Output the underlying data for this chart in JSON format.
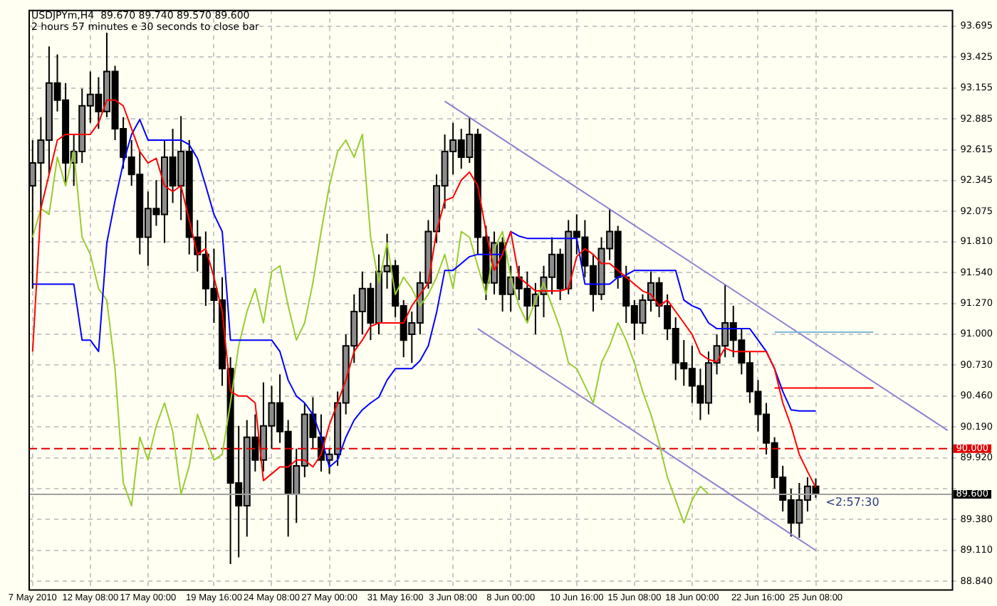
{
  "chart_data": {
    "type": "candlestick",
    "title": "USDJPYm,H4  89.670 89.740 89.570 89.600",
    "annotations": [
      "2 hours 57 minutes e 30 seconds to close bar",
      "<2:57:30"
    ],
    "categories": [
      "7 May 2010",
      null,
      null,
      null,
      null,
      null,
      null,
      "12 May 08:00",
      null,
      null,
      null,
      null,
      null,
      null,
      "17 May 00:00",
      null,
      null,
      null,
      null,
      null,
      null,
      null,
      "19 May 16:00",
      null,
      null,
      null,
      null,
      null,
      null,
      "24 May 08:00",
      null,
      null,
      null,
      null,
      null,
      null,
      "27 May 00:00",
      null,
      null,
      null,
      null,
      null,
      null,
      null,
      "31 May 16:00",
      null,
      null,
      null,
      null,
      null,
      null,
      "3 Jun 08:00",
      null,
      null,
      null,
      null,
      null,
      null,
      "8 Jun 00:00",
      null,
      null,
      null,
      null,
      null,
      null,
      null,
      "10 Jun 16:00",
      null,
      null,
      null,
      null,
      null,
      null,
      "15 Jun 08:00",
      null,
      null,
      null,
      null,
      null,
      null,
      "18 Jun 00:00",
      null,
      null,
      null,
      null,
      null,
      null,
      null,
      "22 Jun 16:00",
      null,
      null,
      null,
      null,
      null,
      null,
      "25 Jun 08:00",
      null,
      null,
      null,
      null,
      null,
      null,
      null,
      null,
      null,
      null,
      null,
      null,
      null,
      null,
      null,
      null
    ],
    "ohlc": [
      [
        92.3,
        92.7,
        91.4,
        92.5
      ],
      [
        92.5,
        92.9,
        92.1,
        92.7
      ],
      [
        92.7,
        93.52,
        92.4,
        93.2
      ],
      [
        93.2,
        93.45,
        92.95,
        93.05
      ],
      [
        93.05,
        93.2,
        92.3,
        92.5
      ],
      [
        92.5,
        92.75,
        92.3,
        92.6
      ],
      [
        92.6,
        93.15,
        92.5,
        93.0
      ],
      [
        93.0,
        93.3,
        92.85,
        93.1
      ],
      [
        93.1,
        93.25,
        92.8,
        92.95
      ],
      [
        92.95,
        93.64,
        92.9,
        93.3
      ],
      [
        93.3,
        93.35,
        92.7,
        92.8
      ],
      [
        92.8,
        92.9,
        92.45,
        92.55
      ],
      [
        92.55,
        92.7,
        92.3,
        92.4
      ],
      [
        92.4,
        92.6,
        91.7,
        91.85
      ],
      [
        91.85,
        92.25,
        91.6,
        92.1
      ],
      [
        92.1,
        92.35,
        91.95,
        92.05
      ],
      [
        92.05,
        92.7,
        91.8,
        92.55
      ],
      [
        92.55,
        92.8,
        92.15,
        92.3
      ],
      [
        92.3,
        92.91,
        92.0,
        92.6
      ],
      [
        92.6,
        92.7,
        91.7,
        91.85
      ],
      [
        91.85,
        92.0,
        91.55,
        91.7
      ],
      [
        91.7,
        91.9,
        91.25,
        91.4
      ],
      [
        91.4,
        91.75,
        91.1,
        91.3
      ],
      [
        91.3,
        91.5,
        90.55,
        90.7
      ],
      [
        90.7,
        90.8,
        88.99,
        89.7
      ],
      [
        89.7,
        90.2,
        89.05,
        89.5
      ],
      [
        89.5,
        90.25,
        89.23,
        90.1
      ],
      [
        90.1,
        90.3,
        89.8,
        89.9
      ],
      [
        89.9,
        90.58,
        89.8,
        90.2
      ],
      [
        90.2,
        90.55,
        90.0,
        90.4
      ],
      [
        90.4,
        90.65,
        90.05,
        90.15
      ],
      [
        90.15,
        90.25,
        89.23,
        89.6
      ],
      [
        89.6,
        90.0,
        89.35,
        89.85
      ],
      [
        89.85,
        90.4,
        89.75,
        90.3
      ],
      [
        90.3,
        90.45,
        90.0,
        90.1
      ],
      [
        90.1,
        90.3,
        89.8,
        89.9
      ],
      [
        89.9,
        90.0,
        89.78,
        89.95
      ],
      [
        89.95,
        90.5,
        89.85,
        90.4
      ],
      [
        90.4,
        91.0,
        90.3,
        90.9
      ],
      [
        90.9,
        91.35,
        90.75,
        91.2
      ],
      [
        91.2,
        91.55,
        91.0,
        91.4
      ],
      [
        91.4,
        91.45,
        90.95,
        91.1
      ],
      [
        91.1,
        91.7,
        91.0,
        91.55
      ],
      [
        91.55,
        91.88,
        91.4,
        91.6
      ],
      [
        91.6,
        91.65,
        91.15,
        91.25
      ],
      [
        91.25,
        91.3,
        90.8,
        90.95
      ],
      [
        91.0,
        91.2,
        90.75,
        91.1
      ],
      [
        91.1,
        91.55,
        91.0,
        91.45
      ],
      [
        91.45,
        92.0,
        91.4,
        91.9
      ],
      [
        91.9,
        92.4,
        91.8,
        92.3
      ],
      [
        92.3,
        92.75,
        92.1,
        92.6
      ],
      [
        92.6,
        92.85,
        92.4,
        92.7
      ],
      [
        92.7,
        92.8,
        92.45,
        92.55
      ],
      [
        92.55,
        92.9,
        92.5,
        92.75
      ],
      [
        92.75,
        92.8,
        91.7,
        91.85
      ],
      [
        91.85,
        91.95,
        91.3,
        91.45
      ],
      [
        91.45,
        91.9,
        91.35,
        91.8
      ],
      [
        91.8,
        91.85,
        91.2,
        91.35
      ],
      [
        91.35,
        91.6,
        91.2,
        91.5
      ],
      [
        91.5,
        91.6,
        91.3,
        91.4
      ],
      [
        91.4,
        91.55,
        91.1,
        91.25
      ],
      [
        91.25,
        91.45,
        91.0,
        91.35
      ],
      [
        91.35,
        91.6,
        91.15,
        91.5
      ],
      [
        91.5,
        91.85,
        91.35,
        91.7
      ],
      [
        91.7,
        91.75,
        91.3,
        91.4
      ],
      [
        91.4,
        92.0,
        91.35,
        91.9
      ],
      [
        91.9,
        92.05,
        91.7,
        91.85
      ],
      [
        91.85,
        92.0,
        91.5,
        91.6
      ],
      [
        91.6,
        91.7,
        91.2,
        91.35
      ],
      [
        91.35,
        91.85,
        91.3,
        91.75
      ],
      [
        91.75,
        92.1,
        91.65,
        91.9
      ],
      [
        91.9,
        91.95,
        91.4,
        91.5
      ],
      [
        91.5,
        91.6,
        91.1,
        91.25
      ],
      [
        91.25,
        91.3,
        90.95,
        91.1
      ],
      [
        91.1,
        91.35,
        91.0,
        91.3
      ],
      [
        91.3,
        91.55,
        91.2,
        91.45
      ],
      [
        91.45,
        91.5,
        91.15,
        91.25
      ],
      [
        91.25,
        91.35,
        90.95,
        91.05
      ],
      [
        91.05,
        91.15,
        90.6,
        90.75
      ],
      [
        90.75,
        90.95,
        90.55,
        90.7
      ],
      [
        90.7,
        90.9,
        90.4,
        90.55
      ],
      [
        90.55,
        90.7,
        90.25,
        90.4
      ],
      [
        90.4,
        90.85,
        90.3,
        90.75
      ],
      [
        90.75,
        91.0,
        90.65,
        90.9
      ],
      [
        90.9,
        91.44,
        90.8,
        91.1
      ],
      [
        91.1,
        91.25,
        90.8,
        90.95
      ],
      [
        90.95,
        91.05,
        90.65,
        90.75
      ],
      [
        90.75,
        90.85,
        90.4,
        90.5
      ],
      [
        90.5,
        90.6,
        90.15,
        90.3
      ],
      [
        90.3,
        90.4,
        89.95,
        90.05
      ],
      [
        90.05,
        90.1,
        89.65,
        89.75
      ],
      [
        89.75,
        89.85,
        89.45,
        89.55
      ],
      [
        89.55,
        89.65,
        89.23,
        89.35
      ],
      [
        89.35,
        89.7,
        89.22,
        89.55
      ],
      [
        89.55,
        89.75,
        89.45,
        89.67
      ],
      [
        89.67,
        89.74,
        89.57,
        89.6
      ],
      null,
      null,
      null,
      null,
      null,
      null,
      null,
      null,
      null,
      null,
      null,
      null,
      null,
      null,
      null,
      null
    ],
    "series": [
      {
        "type": "line",
        "color": "#ff0000",
        "values": [
          90.85,
          92.1,
          92.4,
          92.7,
          92.75,
          92.75,
          92.75,
          92.75,
          92.85,
          93.05,
          93.05,
          93.0,
          92.8,
          92.6,
          92.5,
          92.54,
          92.3,
          92.25,
          92.3,
          92.0,
          91.7,
          91.75,
          91.5,
          91.2,
          90.5,
          90.46,
          90.46,
          90.4,
          89.72,
          89.78,
          89.84,
          89.84,
          89.9,
          89.9,
          89.84,
          89.95,
          90.21,
          90.4,
          90.6,
          90.85,
          90.95,
          91.07,
          91.1,
          91.1,
          91.1,
          91.1,
          91.25,
          91.35,
          91.45,
          91.9,
          92.17,
          92.2,
          92.35,
          92.42,
          92.3,
          91.9,
          91.56,
          91.7,
          91.9,
          91.5,
          91.44,
          91.38,
          91.38,
          91.38,
          91.38,
          91.4,
          91.68,
          91.75,
          91.7,
          91.62,
          91.62,
          91.56,
          91.5,
          91.44,
          91.38,
          91.35,
          91.25,
          91.3,
          91.2,
          91.1,
          91.0,
          90.83,
          90.78,
          90.76,
          90.88,
          90.85,
          90.85,
          90.85,
          90.85,
          90.85,
          90.7,
          90.4,
          90.2,
          89.95,
          89.8,
          89.66,
          null,
          null,
          null,
          null,
          null,
          null,
          null,
          null,
          null,
          null,
          null,
          null,
          null,
          null,
          null,
          null
        ]
      },
      {
        "type": "line",
        "color": "#0000ff",
        "values": [
          91.44,
          91.44,
          91.44,
          91.44,
          91.44,
          91.44,
          90.95,
          90.95,
          90.85,
          91.8,
          92.17,
          92.5,
          92.75,
          92.88,
          92.7,
          92.7,
          92.7,
          92.7,
          92.7,
          92.66,
          92.54,
          92.3,
          92.05,
          91.9,
          90.95,
          90.95,
          90.95,
          90.95,
          90.95,
          90.95,
          90.85,
          90.6,
          90.46,
          90.4,
          90.3,
          90.1,
          89.84,
          89.9,
          90.1,
          90.25,
          90.34,
          90.4,
          90.45,
          90.6,
          90.7,
          90.7,
          90.7,
          90.77,
          90.9,
          91.19,
          91.56,
          91.56,
          91.62,
          91.68,
          91.7,
          91.7,
          91.7,
          91.7,
          91.9,
          91.86,
          91.84,
          91.84,
          91.84,
          91.84,
          91.84,
          91.84,
          91.84,
          91.44,
          91.44,
          91.44,
          91.44,
          91.5,
          91.52,
          91.56,
          91.56,
          91.56,
          91.56,
          91.56,
          91.56,
          91.3,
          91.25,
          91.22,
          91.1,
          91.05,
          91.05,
          91.05,
          91.05,
          91.05,
          90.95,
          90.85,
          90.7,
          90.5,
          90.34,
          90.33,
          90.33,
          90.33,
          null,
          null,
          null,
          null,
          null,
          null,
          null,
          null,
          null,
          null,
          null,
          null,
          null,
          null,
          null,
          null
        ]
      },
      {
        "type": "line",
        "color": "#99cc33",
        "values": [
          91.85,
          92.1,
          92.05,
          92.55,
          92.3,
          92.6,
          91.85,
          91.7,
          91.4,
          91.3,
          90.7,
          89.7,
          89.5,
          90.1,
          89.9,
          90.2,
          90.4,
          90.15,
          89.6,
          89.85,
          90.3,
          90.1,
          89.9,
          89.95,
          90.4,
          90.9,
          91.2,
          91.4,
          91.1,
          91.55,
          91.6,
          91.25,
          90.95,
          91.1,
          91.45,
          91.9,
          92.3,
          92.6,
          92.7,
          92.55,
          92.75,
          91.85,
          91.45,
          91.8,
          91.35,
          91.5,
          91.4,
          91.25,
          91.35,
          91.5,
          91.7,
          91.4,
          91.9,
          91.85,
          91.6,
          91.35,
          91.75,
          91.9,
          91.5,
          91.25,
          91.1,
          91.3,
          91.45,
          91.25,
          91.05,
          90.75,
          90.7,
          90.55,
          90.4,
          90.75,
          90.9,
          91.1,
          90.95,
          90.75,
          90.5,
          90.3,
          90.05,
          89.75,
          89.55,
          89.35,
          89.55,
          89.67,
          89.6,
          null,
          null,
          null,
          null,
          null,
          null,
          null,
          null,
          null,
          null,
          null,
          null,
          null,
          null,
          null,
          null,
          null,
          null,
          null,
          null,
          null,
          null,
          null,
          null,
          null,
          null,
          null,
          null,
          null
        ]
      },
      {
        "type": "line",
        "color": "#ff0000",
        "values": [
          null,
          null,
          null,
          null,
          null,
          null,
          null,
          null,
          null,
          null,
          null,
          null,
          null,
          null,
          null,
          null,
          null,
          null,
          null,
          null,
          null,
          null,
          null,
          null,
          null,
          null,
          null,
          null,
          null,
          null,
          null,
          null,
          null,
          null,
          null,
          null,
          null,
          null,
          null,
          null,
          null,
          null,
          null,
          null,
          null,
          null,
          null,
          null,
          null,
          null,
          null,
          null,
          null,
          null,
          null,
          null,
          null,
          null,
          null,
          null,
          null,
          null,
          null,
          null,
          null,
          null,
          null,
          null,
          null,
          null,
          null,
          null,
          null,
          null,
          null,
          null,
          null,
          null,
          null,
          null,
          null,
          null,
          null,
          null,
          null,
          null,
          null,
          null,
          null,
          null,
          90.53,
          90.53,
          90.53,
          90.53,
          90.53,
          90.53,
          90.53,
          90.53,
          90.53,
          90.53,
          90.53,
          90.53,
          90.53,
          null,
          null,
          null,
          null,
          null,
          null,
          null,
          null,
          null
        ]
      },
      {
        "type": "line",
        "color": "#80b8d8",
        "values": [
          null,
          null,
          null,
          null,
          null,
          null,
          null,
          null,
          null,
          null,
          null,
          null,
          null,
          null,
          null,
          null,
          null,
          null,
          null,
          null,
          null,
          null,
          null,
          null,
          null,
          null,
          null,
          null,
          null,
          null,
          null,
          null,
          null,
          null,
          null,
          null,
          null,
          null,
          null,
          null,
          null,
          null,
          null,
          null,
          null,
          null,
          null,
          null,
          null,
          null,
          null,
          null,
          null,
          null,
          null,
          null,
          null,
          null,
          null,
          null,
          null,
          null,
          null,
          null,
          null,
          null,
          null,
          null,
          null,
          null,
          null,
          null,
          null,
          null,
          null,
          null,
          null,
          null,
          null,
          null,
          null,
          null,
          null,
          null,
          null,
          null,
          null,
          null,
          null,
          null,
          91.02,
          91.02,
          91.02,
          91.02,
          91.02,
          91.02,
          91.02,
          91.02,
          91.02,
          91.02,
          91.02,
          91.02,
          91.02,
          null,
          null,
          null,
          null,
          null,
          null,
          null,
          null,
          null
        ]
      },
      {
        "type": "line",
        "color": "#9080d0",
        "values": [
          null,
          null,
          null,
          null,
          null,
          null,
          null,
          null,
          null,
          null,
          null,
          null,
          null,
          null,
          null,
          null,
          null,
          null,
          null,
          null,
          null,
          null,
          null,
          null,
          null,
          null,
          null,
          null,
          null,
          null,
          null,
          null,
          null,
          null,
          null,
          null,
          null,
          null,
          null,
          null,
          null,
          null,
          null,
          null,
          null,
          null,
          null,
          null,
          null,
          null,
          93.04,
          null,
          null,
          null,
          null,
          null,
          null,
          null,
          null,
          null,
          null,
          null,
          null,
          null,
          null,
          null,
          null,
          null,
          null,
          null,
          null,
          null,
          null,
          null,
          null,
          null,
          null,
          null,
          null,
          null,
          null,
          null,
          null,
          null,
          null,
          null,
          null,
          null,
          null,
          null,
          null,
          null,
          null,
          null,
          null,
          null,
          null,
          null,
          null,
          null,
          null,
          null,
          null,
          null,
          null,
          null,
          null,
          null,
          null,
          null,
          null,
          90.16
        ]
      },
      {
        "type": "line",
        "color": "#9080d0",
        "values": [
          null,
          null,
          null,
          null,
          null,
          null,
          null,
          null,
          null,
          null,
          null,
          null,
          null,
          null,
          null,
          null,
          null,
          null,
          null,
          null,
          null,
          null,
          null,
          null,
          null,
          null,
          null,
          null,
          null,
          null,
          null,
          null,
          null,
          null,
          null,
          null,
          null,
          null,
          null,
          null,
          null,
          null,
          null,
          null,
          null,
          null,
          null,
          null,
          null,
          null,
          null,
          null,
          null,
          null,
          91.05,
          null,
          null,
          null,
          null,
          null,
          null,
          null,
          null,
          null,
          null,
          null,
          null,
          null,
          null,
          null,
          null,
          null,
          null,
          null,
          null,
          null,
          null,
          null,
          null,
          null,
          null,
          null,
          null,
          null,
          null,
          null,
          null,
          null,
          null,
          null,
          null,
          null,
          null,
          null,
          null,
          89.11,
          null,
          null,
          null,
          null,
          null,
          null,
          null,
          null,
          null,
          null,
          null,
          null,
          null,
          null,
          null,
          null
        ]
      }
    ],
    "ylim": [
      88.77,
      93.84
    ],
    "yticks": [
      {
        "value": 88.84,
        "label": "88.840"
      },
      {
        "value": 89.11,
        "label": "89.110"
      },
      {
        "value": 89.38,
        "label": "89.380"
      },
      {
        "value": 89.65,
        "label": null
      },
      {
        "value": 89.92,
        "label": "89.920"
      },
      {
        "value": 90.19,
        "label": "90.190"
      },
      {
        "value": 90.46,
        "label": "90.460"
      },
      {
        "value": 90.73,
        "label": "90.730"
      },
      {
        "value": 91.0,
        "label": "91.000"
      },
      {
        "value": 91.27,
        "label": "91.270"
      },
      {
        "value": 91.54,
        "label": "91.540"
      },
      {
        "value": 91.81,
        "label": "91.810"
      },
      {
        "value": 92.075,
        "label": "92.075"
      },
      {
        "value": 92.345,
        "label": "92.345"
      },
      {
        "value": 92.615,
        "label": "92.615"
      },
      {
        "value": 92.885,
        "label": "92.885"
      },
      {
        "value": 93.155,
        "label": "93.155"
      },
      {
        "value": 93.425,
        "label": "93.425"
      },
      {
        "value": 93.695,
        "label": "93.695"
      }
    ],
    "ref_lines": [
      {
        "axis": "y",
        "value": 90.0,
        "label": "90.000",
        "color": "#e00000",
        "line_style": "dashed"
      },
      {
        "axis": "y",
        "value": 89.6,
        "label": "89.600",
        "color": "#a0a0a0",
        "line_style": "solid"
      }
    ],
    "grid": true
  }
}
